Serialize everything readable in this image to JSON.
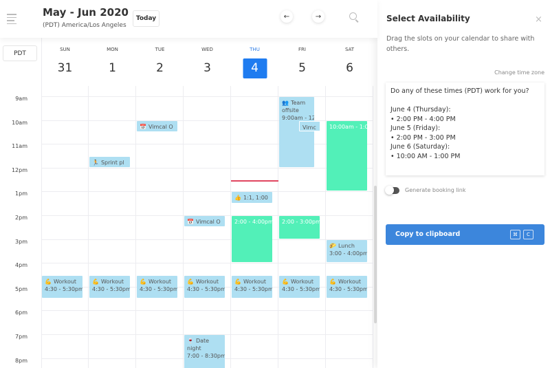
{
  "header": {
    "title": "May - Jun 2020",
    "timezone": "(PDT) America/Los Angeles",
    "today_label": "Today",
    "prev_icon": "←",
    "next_icon": "→"
  },
  "tz_label": "PDT",
  "days": [
    {
      "dow": "SUN",
      "num": "31"
    },
    {
      "dow": "MON",
      "num": "1"
    },
    {
      "dow": "TUE",
      "num": "2"
    },
    {
      "dow": "WED",
      "num": "3"
    },
    {
      "dow": "THU",
      "num": "4",
      "current": true
    },
    {
      "dow": "FRI",
      "num": "5"
    },
    {
      "dow": "SAT",
      "num": "6"
    }
  ],
  "hours": [
    "9am",
    "10am",
    "11am",
    "12pm",
    "1pm",
    "2pm",
    "3pm",
    "4pm",
    "5pm",
    "6pm",
    "7pm",
    "8pm"
  ],
  "events": [
    {
      "day": 2,
      "start": 10,
      "end": 10.5,
      "icon": "📅",
      "title": "Vimcal O",
      "time": ""
    },
    {
      "day": 1,
      "start": 11.5,
      "end": 12,
      "icon": "🏃",
      "title": "Sprint pl",
      "time": ""
    },
    {
      "day": 5,
      "start": 9,
      "end": 12,
      "icon": "👥",
      "title": "Team offsite",
      "time": "9:00am - 12",
      "narrow": true
    },
    {
      "day": 5,
      "start": 10,
      "end": 10.5,
      "icon": "",
      "title": "Vimc",
      "time": "",
      "overlay": true
    },
    {
      "day": 6,
      "start": 10,
      "end": 13,
      "title": "",
      "time": "10:00am - 1:0",
      "color": "green"
    },
    {
      "day": 4,
      "start": 13,
      "end": 13.5,
      "icon": "👍",
      "title": "1:1,  1:00",
      "time": ""
    },
    {
      "day": 3,
      "start": 14,
      "end": 14.5,
      "icon": "📅",
      "title": "Vimcal O",
      "time": ""
    },
    {
      "day": 4,
      "start": 14,
      "end": 16,
      "title": "",
      "time": "2:00 - 4:00pm",
      "color": "green"
    },
    {
      "day": 5,
      "start": 14,
      "end": 15,
      "title": "",
      "time": "2:00 - 3:00pm",
      "color": "green"
    },
    {
      "day": 6,
      "start": 15,
      "end": 16,
      "icon": "🌮",
      "title": "Lunch",
      "time": "3:00 - 4:00pm"
    },
    {
      "day": 0,
      "start": 16.5,
      "end": 17.5,
      "icon": "💪",
      "title": "Workout",
      "time": "4:30 - 5:30pm"
    },
    {
      "day": 1,
      "start": 16.5,
      "end": 17.5,
      "icon": "💪",
      "title": "Workout",
      "time": "4:30 - 5:30pm"
    },
    {
      "day": 2,
      "start": 16.5,
      "end": 17.5,
      "icon": "💪",
      "title": "Workout",
      "time": "4:30 - 5:30pm"
    },
    {
      "day": 3,
      "start": 16.5,
      "end": 17.5,
      "icon": "💪",
      "title": "Workout",
      "time": "4:30 - 5:30pm"
    },
    {
      "day": 4,
      "start": 16.5,
      "end": 17.5,
      "icon": "💪",
      "title": "Workout",
      "time": "4:30 - 5:30pm"
    },
    {
      "day": 5,
      "start": 16.5,
      "end": 17.5,
      "icon": "💪",
      "title": "Workout",
      "time": "4:30 - 5:30pm"
    },
    {
      "day": 6,
      "start": 16.5,
      "end": 17.5,
      "icon": "💪",
      "title": "Workout",
      "time": "4:30 - 5:30pm"
    },
    {
      "day": 3,
      "start": 19,
      "end": 20.5,
      "icon": "🍷",
      "title": "Date night",
      "time": "7:00 - 8:30pm"
    }
  ],
  "now_time": 12.53,
  "colors": {
    "accent": "#1f7cf0",
    "event": "#aedff2",
    "availability": "#52f0b8",
    "now": "#e0455f",
    "copy_button": "#3c86dc"
  },
  "panel": {
    "title": "Select Availability",
    "close_icon": "×",
    "description": "Drag the slots on your calendar to share with others.",
    "change_tz": "Change time zone",
    "message": [
      "Do any of these times (PDT) work for you?",
      "",
      "June 4 (Thursday):",
      "• 2:00 PM - 4:00 PM",
      "June 5 (Friday):",
      "• 2:00 PM - 3:00 PM",
      "June 6 (Saturday):",
      "• 10:00 AM - 1:00 PM"
    ],
    "booking_label": "Generate booking link",
    "booking_enabled": false,
    "copy_label": "Copy to clipboard",
    "shortcut": [
      "⌘",
      "C"
    ]
  }
}
